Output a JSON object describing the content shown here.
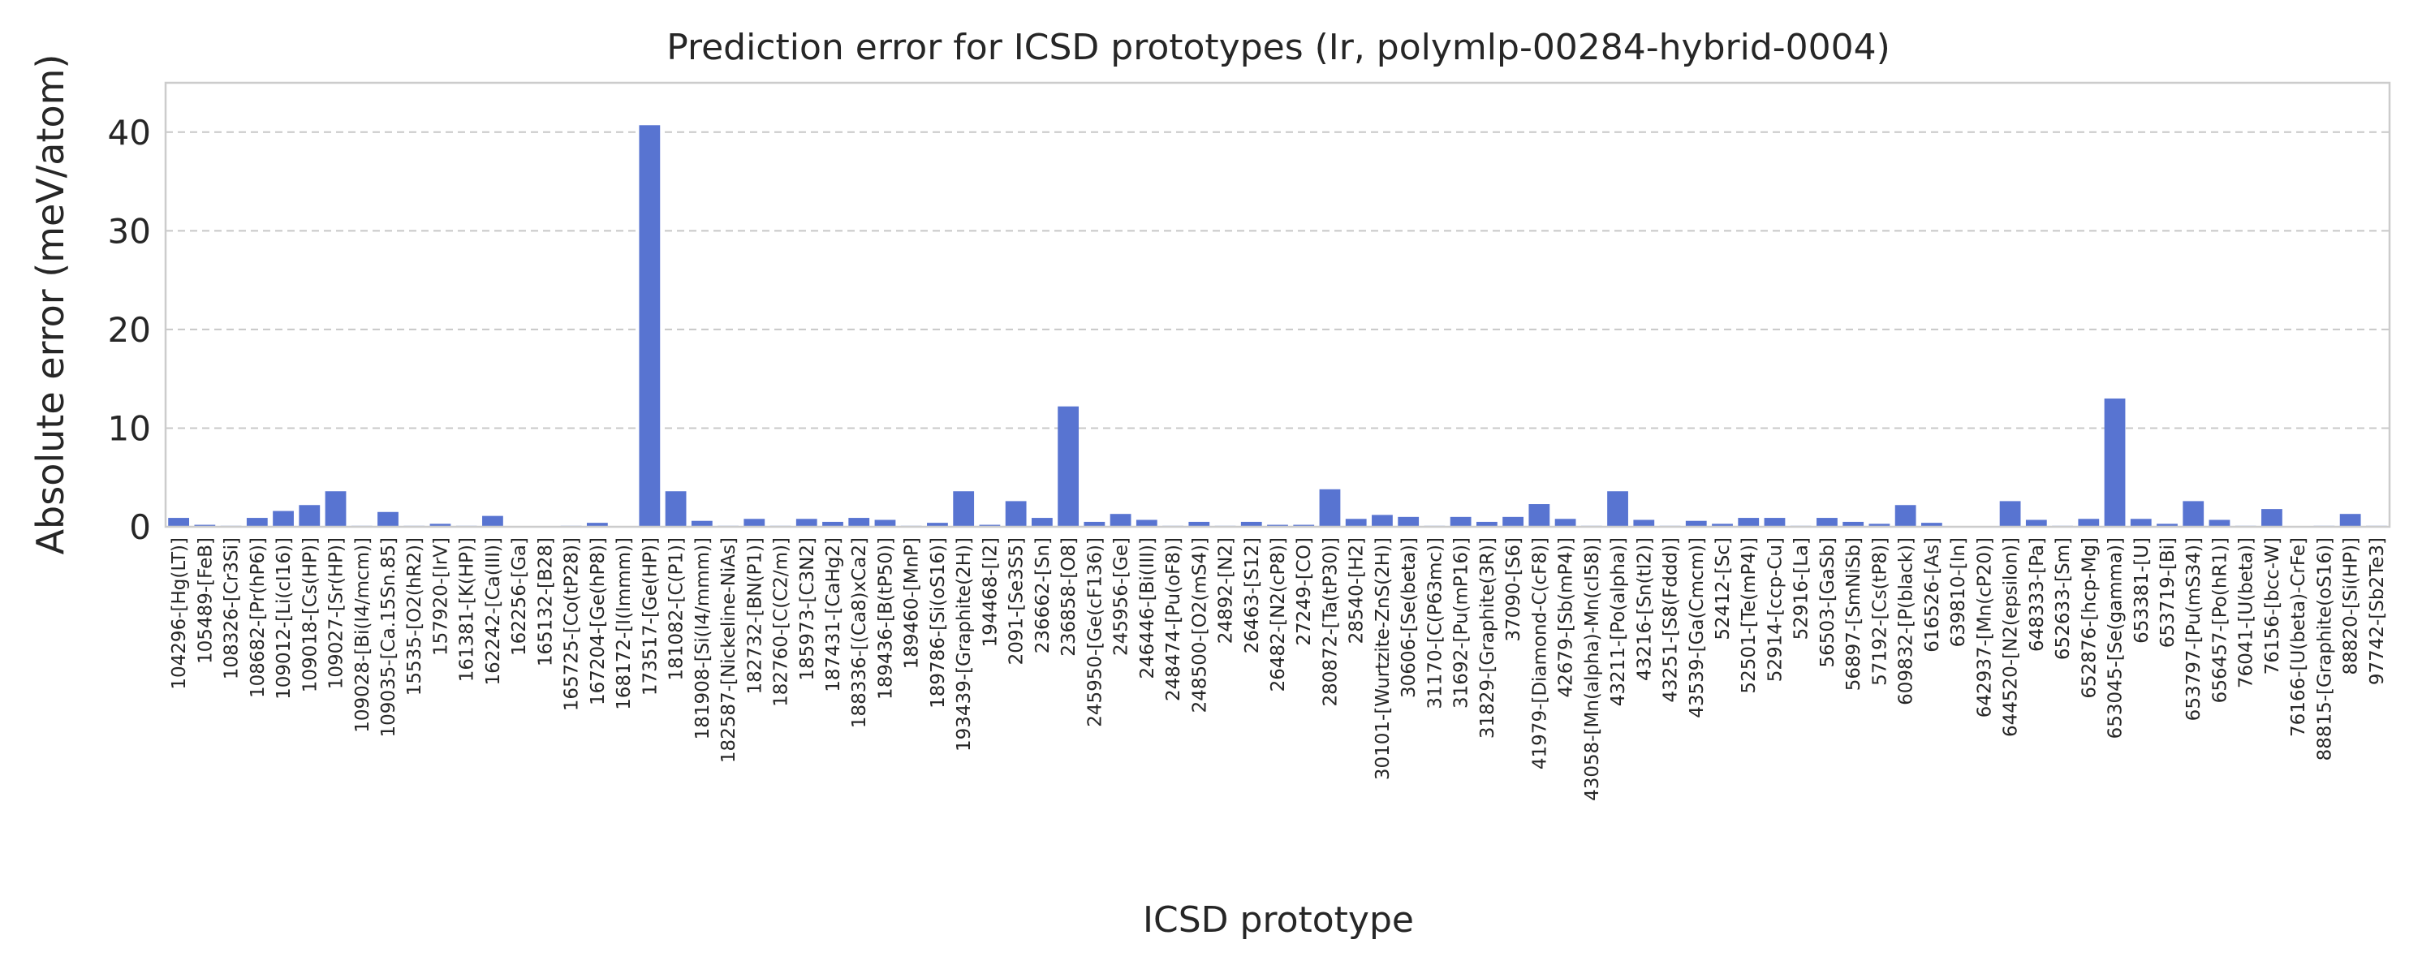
{
  "chart_data": {
    "type": "bar",
    "title": "Prediction error for ICSD prototypes (Ir, polymlp-00284-hybrid-0004)",
    "xlabel": "ICSD prototype",
    "ylabel": "Absolute error (meV/atom)",
    "ylim": [
      0,
      45
    ],
    "yticks": [
      0,
      10,
      20,
      30,
      40
    ],
    "grid": "y-dashed",
    "bar_color": "#5874d1",
    "categories": [
      "104296-[Hg(LT)]",
      "105489-[FeB]",
      "108326-[Cr3Si]",
      "108682-[Pr(hP6)]",
      "109012-[Li(cI16)]",
      "109018-[Cs(HP)]",
      "109027-[Sr(HP)]",
      "109028-[Bi(I4/mcm)]",
      "109035-[Ca.15Sn.85]",
      "15535-[O2(hR2)]",
      "157920-[IrV]",
      "161381-[K(HP)]",
      "162242-[Ca(III)]",
      "162256-[Ga]",
      "165132-[B28]",
      "165725-[Co(tP28)]",
      "167204-[Ge(hP8)]",
      "168172-[I(Immm)]",
      "173517-[Ge(HP)]",
      "181082-[C(P1)]",
      "181908-[Si(I4/mmm)]",
      "182587-[Nickeline-NiAs]",
      "182732-[BN(P1)]",
      "182760-[C(C2/m)]",
      "185973-[C3N2]",
      "187431-[CaHg2]",
      "188336-[(Ca8)xCa2]",
      "189436-[B(tP50)]",
      "189460-[MnP]",
      "189786-[Si(oS16)]",
      "193439-[Graphite(2H)]",
      "194468-[I2]",
      "2091-[Se3S5]",
      "236662-[Sn]",
      "236858-[O8]",
      "245950-[Ge(cF136)]",
      "245956-[Ge]",
      "246446-[Bi(III)]",
      "248474-[Pu(oF8)]",
      "248500-[O2(mS4)]",
      "24892-[N2]",
      "26463-[S12]",
      "26482-[N2(cP8)]",
      "27249-[CO]",
      "280872-[Ta(tP30)]",
      "28540-[H2]",
      "30101-[Wurtzite-ZnS(2H)]",
      "30606-[Se(beta)]",
      "31170-[C(P63mc)]",
      "31692-[Pu(mP16)]",
      "31829-[Graphite(3R)]",
      "37090-[S6]",
      "41979-[Diamond-C(cF8)]",
      "42679-[Sb(mP4)]",
      "43058-[Mn(alpha)-Mn(cI58)]",
      "43211-[Po(alpha)]",
      "43216-[Sn(tI2)]",
      "43251-[S8(Fddd)]",
      "43539-[Ga(Cmcm)]",
      "52412-[Sc]",
      "52501-[Te(mP4)]",
      "52914-[ccp-Cu]",
      "52916-[La]",
      "56503-[GaSb]",
      "56897-[SmNiSb]",
      "57192-[Cs(tP8)]",
      "609832-[P(black)]",
      "616526-[As]",
      "639810-[In]",
      "642937-[Mn(cP20)]",
      "644520-[N2(epsilon)]",
      "648333-[Pa]",
      "652633-[Sm]",
      "652876-[hcp-Mg]",
      "653045-[Se(gamma)]",
      "653381-[U]",
      "653719-[Bi]",
      "653797-[Pu(mS34)]",
      "656457-[Po(hR1)]",
      "76041-[U(beta)]",
      "76156-[bcc-W]",
      "76166-[U(beta)-CrFe]",
      "88815-[Graphite(oS16)]",
      "88820-[Si(HP)]",
      "97742-[Sb2Te3]"
    ],
    "values": [
      0.9,
      0.2,
      0.1,
      0.9,
      1.6,
      2.2,
      3.6,
      0.1,
      1.5,
      0.1,
      0.3,
      0.1,
      1.1,
      0.05,
      0.05,
      0.1,
      0.4,
      0.05,
      40.7,
      3.6,
      0.6,
      0.1,
      0.8,
      0.1,
      0.8,
      0.5,
      0.9,
      0.7,
      0.1,
      0.4,
      3.6,
      0.2,
      2.6,
      0.9,
      12.2,
      0.5,
      1.3,
      0.7,
      0.1,
      0.5,
      0.1,
      0.5,
      0.2,
      0.2,
      3.8,
      0.8,
      1.2,
      1.0,
      0.1,
      1.0,
      0.5,
      1.0,
      2.3,
      0.8,
      0.1,
      3.6,
      0.7,
      0.1,
      0.6,
      0.3,
      0.9,
      0.9,
      0.1,
      0.9,
      0.5,
      0.3,
      2.2,
      0.4,
      0.05,
      0.05,
      2.6,
      0.7,
      0.1,
      0.8,
      13.0,
      0.8,
      0.3,
      2.6,
      0.7,
      0.1,
      1.8,
      0.05,
      0.1,
      1.3,
      0.1
    ]
  }
}
